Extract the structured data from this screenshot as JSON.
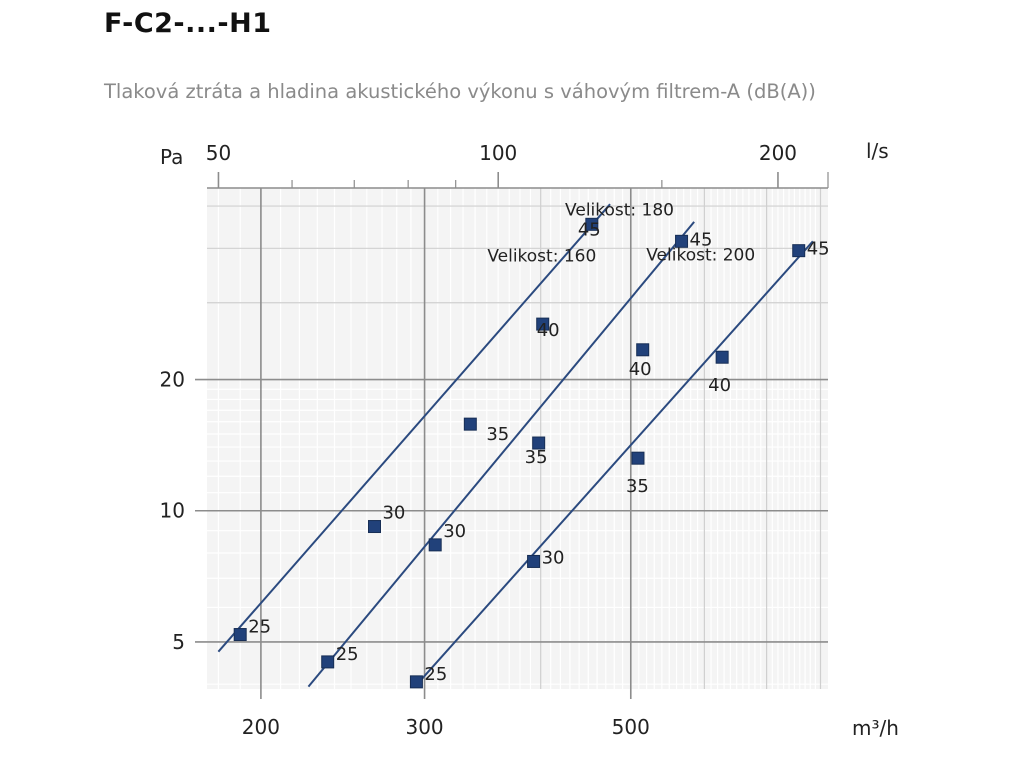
{
  "page": {
    "title": "F-C2-...-H1",
    "subtitle": "Tlaková ztráta a hladina akustického výkonu s váhovým filtrem-A (dB(A))"
  },
  "chart_data": {
    "type": "line",
    "y_axis": {
      "label": "Pa",
      "scale": "log",
      "range": [
        3.9,
        55
      ],
      "ticks": [
        5,
        10,
        20
      ]
    },
    "x_axis_bottom": {
      "label": "m³/h",
      "scale": "log",
      "range": [
        175,
        815
      ],
      "ticks": [
        200,
        300,
        500
      ]
    },
    "x_axis_top": {
      "label": "l/s",
      "scale": "log",
      "range": [
        48.6,
        226.4
      ],
      "ticks": [
        50,
        100,
        200
      ]
    },
    "grid": true,
    "series": [
      {
        "name": "Velikost: 160",
        "line": [
          [
            180,
            4.75
          ],
          [
            475,
            50.5
          ]
        ],
        "points": [
          {
            "x": 190.0,
            "y": 5.2,
            "label": "25"
          },
          {
            "x": 265.0,
            "y": 9.2,
            "label": "30"
          },
          {
            "x": 336.0,
            "y": 15.8,
            "label": "35"
          },
          {
            "x": 402.0,
            "y": 26.8,
            "label": "40"
          },
          {
            "x": 454.0,
            "y": 45.4,
            "label": "45"
          }
        ]
      },
      {
        "name": "Velikost: 180",
        "line": [
          [
            225,
            3.95
          ],
          [
            585,
            46.0
          ]
        ],
        "points": [
          {
            "x": 236.0,
            "y": 4.5,
            "label": "25"
          },
          {
            "x": 308.0,
            "y": 8.35,
            "label": "30"
          },
          {
            "x": 398.0,
            "y": 14.3,
            "label": "35"
          },
          {
            "x": 515.0,
            "y": 23.4,
            "label": "40"
          },
          {
            "x": 567.0,
            "y": 41.5,
            "label": "45"
          }
        ]
      },
      {
        "name": "Velikost: 200",
        "line": [
          [
            293,
            3.95
          ],
          [
            785,
            41.5
          ]
        ],
        "points": [
          {
            "x": 294.0,
            "y": 4.05,
            "label": "25"
          },
          {
            "x": 393.0,
            "y": 7.65,
            "label": "30"
          },
          {
            "x": 509.0,
            "y": 13.2,
            "label": "35"
          },
          {
            "x": 627.0,
            "y": 22.5,
            "label": "40"
          },
          {
            "x": 758.0,
            "y": 39.5,
            "label": "45"
          }
        ]
      }
    ]
  }
}
